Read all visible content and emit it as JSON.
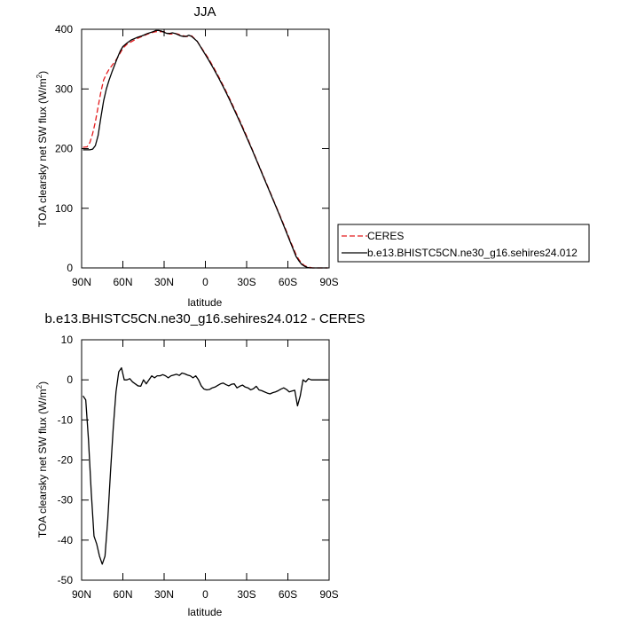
{
  "chart_data": [
    {
      "type": "line",
      "title": "JJA",
      "xlabel": "latitude",
      "ylabel_prefix": "TOA clearsky net SW flux (W/m",
      "ylabel_sup": "2",
      "ylabel_suffix": ")",
      "xlim": [
        90,
        -90
      ],
      "ylim": [
        0,
        400
      ],
      "xticks": [
        90,
        60,
        30,
        0,
        -30,
        -60,
        -90
      ],
      "xtick_labels": [
        "90N",
        "60N",
        "30N",
        "0",
        "30S",
        "60S",
        "90S"
      ],
      "yticks": [
        0,
        100,
        200,
        300,
        400
      ],
      "ytick_labels": [
        "0",
        "100",
        "200",
        "300",
        "400"
      ],
      "grid": false,
      "legend": {
        "position": "right",
        "entries": [
          "CERES",
          "b.e13.BHISTC5CN.ne30_g16.sehires24.012"
        ]
      },
      "series": [
        {
          "name": "CERES",
          "color": "#e41a1c",
          "dash": "dashed",
          "x": [
            89,
            86,
            84,
            82,
            80,
            78,
            76,
            74,
            72,
            70,
            68,
            66,
            64,
            62,
            60,
            57,
            54,
            50,
            46,
            42,
            38,
            36,
            34,
            32,
            30,
            28,
            26,
            24,
            22,
            20,
            18,
            16,
            14,
            12,
            10,
            6,
            2,
            -2,
            -6,
            -10,
            -14,
            -18,
            -22,
            -26,
            -30,
            -34,
            -38,
            -42,
            -46,
            -50,
            -54,
            -58,
            -62,
            -66,
            -68,
            -70,
            -72,
            -74,
            -76,
            -78,
            -80,
            -82,
            -84,
            -86,
            -88,
            -89
          ],
          "y": [
            202,
            203,
            210,
            225,
            245,
            270,
            295,
            315,
            325,
            333,
            339,
            345,
            352,
            360,
            368,
            375,
            379,
            384,
            388,
            392,
            395,
            396,
            396,
            396,
            396,
            394,
            392,
            392,
            393,
            392,
            390,
            389,
            388,
            388,
            389,
            380,
            366,
            352,
            336,
            319,
            301,
            282,
            262,
            242,
            221,
            199,
            177,
            155,
            133,
            111,
            89,
            67,
            44,
            22,
            14,
            8,
            4,
            2,
            1,
            0,
            0,
            0,
            0,
            0,
            0,
            0
          ]
        },
        {
          "name": "b.e13.BHISTC5CN.ne30_g16.sehires24.012",
          "color": "#000000",
          "dash": "solid",
          "x": [
            89,
            86,
            84,
            82,
            80,
            78,
            76,
            74,
            72,
            70,
            68,
            66,
            64,
            62,
            60,
            57,
            54,
            50,
            46,
            42,
            38,
            36,
            34,
            32,
            30,
            28,
            26,
            24,
            22,
            20,
            18,
            16,
            14,
            12,
            10,
            6,
            2,
            -2,
            -6,
            -10,
            -14,
            -18,
            -22,
            -26,
            -30,
            -34,
            -38,
            -42,
            -46,
            -50,
            -54,
            -58,
            -62,
            -66,
            -68,
            -70,
            -72,
            -74,
            -76,
            -78,
            -80,
            -82,
            -84,
            -86,
            -88,
            -89
          ],
          "y": [
            198,
            198,
            198,
            199,
            205,
            222,
            252,
            280,
            300,
            315,
            328,
            340,
            352,
            363,
            371,
            377,
            382,
            386,
            389,
            393,
            396,
            398,
            398,
            397,
            395,
            393,
            393,
            394,
            393,
            391,
            389,
            388,
            388,
            390,
            388,
            380,
            365,
            350,
            334,
            317,
            299,
            280,
            260,
            240,
            219,
            198,
            176,
            154,
            132,
            110,
            88,
            65,
            42,
            19,
            12,
            6,
            3,
            1,
            0,
            0,
            0,
            0,
            0,
            0,
            0,
            0
          ]
        }
      ]
    },
    {
      "type": "line",
      "title": "b.e13.BHISTC5CN.ne30_g16.sehires24.012 - CERES",
      "xlabel": "latitude",
      "ylabel_prefix": "TOA clearsky net SW flux (W/m",
      "ylabel_sup": "2",
      "ylabel_suffix": ")",
      "xlim": [
        90,
        -90
      ],
      "ylim": [
        -50,
        10
      ],
      "xticks": [
        90,
        60,
        30,
        0,
        -30,
        -60,
        -90
      ],
      "xtick_labels": [
        "90N",
        "60N",
        "30N",
        "0",
        "30S",
        "60S",
        "90S"
      ],
      "yticks": [
        -50,
        -40,
        -30,
        -20,
        -10,
        0,
        10
      ],
      "ytick_labels": [
        "-50",
        "-40",
        "-30",
        "-20",
        "-10",
        "0",
        "10"
      ],
      "grid": false,
      "series": [
        {
          "name": "",
          "color": "#000000",
          "dash": "solid",
          "x": [
            89,
            87,
            85,
            83,
            81,
            79,
            77,
            75,
            73,
            71,
            69,
            67,
            65,
            63,
            61,
            59,
            57,
            55,
            53,
            51,
            49,
            47,
            45,
            43,
            41,
            39,
            37,
            35,
            33,
            31,
            29,
            27,
            25,
            23,
            21,
            19,
            17,
            15,
            13,
            11,
            9,
            7,
            5,
            3,
            1,
            -1,
            -3,
            -5,
            -7,
            -9,
            -11,
            -13,
            -15,
            -17,
            -19,
            -21,
            -23,
            -25,
            -27,
            -29,
            -31,
            -33,
            -35,
            -37,
            -39,
            -41,
            -43,
            -45,
            -47,
            -49,
            -51,
            -53,
            -55,
            -57,
            -59,
            -61,
            -63,
            -65,
            -67,
            -69,
            -71,
            -73,
            -75,
            -77,
            -79,
            -81,
            -83,
            -85,
            -87,
            -89
          ],
          "y": [
            -4,
            -5,
            -15,
            -28,
            -39,
            -41,
            -44,
            -46,
            -44,
            -35,
            -23,
            -12,
            -3,
            2,
            3,
            0,
            0,
            0.3,
            -0.5,
            -1,
            -1.5,
            -1.6,
            0,
            -1,
            0,
            1,
            0.5,
            1,
            1,
            1.3,
            1,
            0.5,
            1,
            1.2,
            1.4,
            1.1,
            1.7,
            1.5,
            1.2,
            1,
            0.5,
            1,
            0,
            -1.5,
            -2.3,
            -2.5,
            -2.4,
            -2,
            -1.8,
            -1.4,
            -1,
            -0.8,
            -1.2,
            -1.5,
            -1.1,
            -1,
            -2,
            -1.6,
            -1.3,
            -1.8,
            -2,
            -2.5,
            -2.2,
            -1.6,
            -2.5,
            -2.7,
            -3,
            -3.3,
            -3.5,
            -3.2,
            -3,
            -2.7,
            -2.3,
            -2,
            -2.4,
            -3,
            -2.8,
            -2.6,
            -6.5,
            -4,
            0,
            -0.5,
            0.3,
            0,
            0,
            0,
            0,
            0,
            0,
            0
          ]
        }
      ]
    }
  ]
}
